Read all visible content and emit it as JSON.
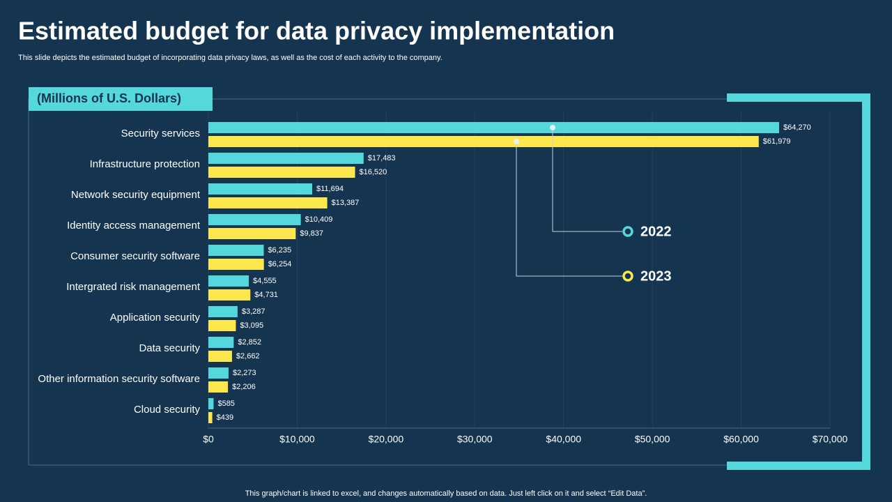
{
  "chart_data": {
    "type": "hbar",
    "title": "Estimated budget for data privacy implementation",
    "subtitle": "This slide depicts the estimated budget of incorporating data  privacy laws, as well as the cost of each activity to the company.",
    "unit_label": "(Millions of U.S. Dollars)",
    "footer": "This graph/chart is linked to excel,  and changes automatically based on data. Just left click on it and select “Edit Data”.",
    "categories": [
      "Security services",
      "Infrastructure protection",
      "Network security equipment",
      "Identity access management ",
      "Consumer security software",
      "Intergrated risk management",
      "Application security",
      "Data security",
      "Other information security software",
      "Cloud security"
    ],
    "series": [
      {
        "name": "2022",
        "color": "#55d8dc",
        "values": [
          64270,
          17483,
          11694,
          10409,
          6235,
          4555,
          3287,
          2852,
          2273,
          585
        ],
        "value_labels": [
          "$64,270",
          "$17,483",
          "$11,694",
          "$10,409",
          "$6,235",
          "$4,555",
          "$3,287",
          "$2,852",
          "$2,273",
          "$585"
        ]
      },
      {
        "name": "2023",
        "color": "#fce84c",
        "values": [
          61979,
          16520,
          13387,
          9837,
          6254,
          4731,
          3095,
          2662,
          2206,
          439
        ],
        "value_labels": [
          "$61,979",
          "$16,520",
          "$13,387",
          "$9,837",
          "$6,254",
          "$4,731",
          "$3,095",
          "$2,662",
          "$2,206",
          "$439"
        ]
      }
    ],
    "xlim": [
      0,
      70000
    ],
    "xticks": [
      {
        "value": 0,
        "label": "$0"
      },
      {
        "value": 10000,
        "label": "$10,000"
      },
      {
        "value": 20000,
        "label": "$20,000"
      },
      {
        "value": 30000,
        "label": "$30,000"
      },
      {
        "value": 40000,
        "label": "$40,000"
      },
      {
        "value": 50000,
        "label": "$50,000"
      },
      {
        "value": 60000,
        "label": "$60,000"
      },
      {
        "value": 70000,
        "label": "$70,000"
      }
    ],
    "grid": true
  }
}
